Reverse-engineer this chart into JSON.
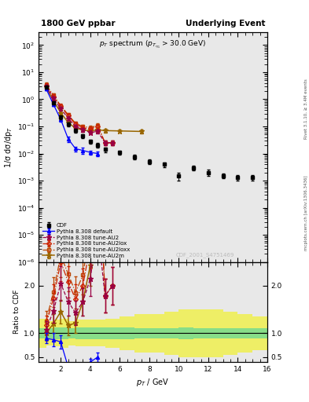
{
  "title_left": "1800 GeV ppbar",
  "title_right": "Underlying Event",
  "subtitle": "$p_T$ spectrum ($p_{\\eta_1}$ > 30.0 GeV)",
  "ylabel_main": "1/σ dσ/dp$_T$",
  "ylabel_ratio": "Ratio to CDF",
  "xlabel": "$p_T$ / GeV",
  "watermark": "CDF_2001_S4751469",
  "right_label": "mcplots.cern.ch [arXiv:1306.3436]",
  "right_label2": "Rivet 3.1.10, ≥ 3.4M events",
  "xlim": [
    0.5,
    16
  ],
  "ylim_main": [
    1e-06,
    300
  ],
  "ylim_ratio": [
    0.4,
    2.5
  ],
  "background_color": "#e8e8e8",
  "green_band_color": "#88dd88",
  "yellow_band_color": "#eeee66",
  "cdf_x": [
    1.0,
    1.5,
    2.0,
    2.5,
    3.0,
    3.5,
    4.0,
    4.5,
    5.0,
    6.0,
    7.0,
    8.0,
    9.0,
    10.0,
    11.0,
    12.0,
    13.0,
    14.0,
    15.0
  ],
  "cdf_y": [
    2.8,
    0.75,
    0.22,
    0.12,
    0.07,
    0.045,
    0.028,
    0.02,
    0.014,
    0.011,
    0.0075,
    0.005,
    0.004,
    0.0015,
    0.003,
    0.002,
    0.0015,
    0.0013,
    0.0013
  ],
  "cdf_yerr": [
    0.4,
    0.12,
    0.04,
    0.02,
    0.012,
    0.008,
    0.005,
    0.004,
    0.003,
    0.002,
    0.0015,
    0.001,
    0.0008,
    0.0005,
    0.0006,
    0.0005,
    0.0003,
    0.0003,
    0.0003
  ],
  "py_default_x": [
    1.0,
    1.5,
    2.0,
    2.5,
    3.0,
    3.5,
    4.0,
    4.5
  ],
  "py_default_y": [
    2.5,
    0.65,
    0.18,
    0.035,
    0.015,
    0.013,
    0.011,
    0.01
  ],
  "py_default_yerr": [
    0.3,
    0.1,
    0.03,
    0.008,
    0.003,
    0.003,
    0.002,
    0.002
  ],
  "py_au2_x": [
    1.0,
    1.5,
    2.0,
    2.5,
    3.0,
    3.5,
    4.0,
    4.5,
    5.0,
    5.5
  ],
  "py_au2_y": [
    3.0,
    1.1,
    0.45,
    0.2,
    0.1,
    0.075,
    0.06,
    0.065,
    0.025,
    0.025
  ],
  "py_au2_yerr": [
    0.5,
    0.18,
    0.08,
    0.035,
    0.018,
    0.013,
    0.01,
    0.011,
    0.005,
    0.005
  ],
  "py_au2lox_x": [
    1.0,
    1.5,
    2.0,
    2.5,
    3.0,
    3.5,
    4.0,
    4.5,
    5.0,
    5.5
  ],
  "py_au2lox_y": [
    3.3,
    1.3,
    0.55,
    0.25,
    0.12,
    0.09,
    0.08,
    0.1,
    0.025,
    0.025
  ],
  "py_au2lox_yerr": [
    0.55,
    0.22,
    0.09,
    0.04,
    0.022,
    0.016,
    0.014,
    0.016,
    0.005,
    0.005
  ],
  "py_au2loxx_x": [
    1.0,
    1.5,
    2.0,
    2.5,
    3.0,
    3.5,
    4.0,
    4.5,
    5.0,
    5.5
  ],
  "py_au2loxx_y": [
    3.5,
    1.4,
    0.58,
    0.27,
    0.13,
    0.1,
    0.09,
    0.11,
    0.025,
    0.025
  ],
  "py_au2loxx_yerr": [
    0.6,
    0.24,
    0.1,
    0.045,
    0.024,
    0.018,
    0.015,
    0.018,
    0.005,
    0.005
  ],
  "py_au2m_x": [
    1.0,
    1.5,
    2.0,
    2.5,
    3.0,
    3.5,
    4.0,
    4.5,
    5.0,
    6.0,
    7.5
  ],
  "py_au2m_y": [
    2.8,
    0.9,
    0.32,
    0.14,
    0.085,
    0.075,
    0.068,
    0.075,
    0.07,
    0.068,
    0.065
  ],
  "py_au2m_yerr": [
    0.45,
    0.15,
    0.055,
    0.025,
    0.015,
    0.013,
    0.012,
    0.013,
    0.012,
    0.011,
    0.01
  ],
  "band_x_lo": [
    0.5,
    1.0,
    1.5,
    2.0,
    2.5,
    3.0,
    4.0,
    5.0,
    6.0,
    7.0,
    8.0,
    9.0,
    10.0,
    11.0,
    12.0,
    13.0,
    14.0,
    15.0
  ],
  "band_x_hi": [
    1.0,
    1.5,
    2.0,
    2.5,
    3.0,
    4.0,
    5.0,
    6.0,
    7.0,
    8.0,
    9.0,
    10.0,
    11.0,
    12.0,
    13.0,
    14.0,
    15.0,
    16.0
  ],
  "band_green_lo": [
    0.9,
    0.9,
    0.88,
    0.88,
    0.9,
    0.88,
    0.88,
    0.88,
    0.88,
    0.9,
    0.9,
    0.9,
    0.88,
    0.9,
    0.9,
    0.9,
    0.9,
    0.9
  ],
  "band_green_hi": [
    1.1,
    1.1,
    1.12,
    1.12,
    1.1,
    1.12,
    1.12,
    1.12,
    1.12,
    1.1,
    1.1,
    1.1,
    1.12,
    1.1,
    1.1,
    1.1,
    1.1,
    1.1
  ],
  "band_yellow_lo": [
    0.7,
    0.75,
    0.72,
    0.7,
    0.75,
    0.72,
    0.72,
    0.7,
    0.65,
    0.6,
    0.6,
    0.55,
    0.5,
    0.5,
    0.5,
    0.55,
    0.6,
    0.65
  ],
  "band_yellow_hi": [
    1.3,
    1.25,
    1.28,
    1.3,
    1.25,
    1.28,
    1.28,
    1.3,
    1.35,
    1.4,
    1.4,
    1.45,
    1.5,
    1.5,
    1.5,
    1.45,
    1.4,
    1.35
  ]
}
